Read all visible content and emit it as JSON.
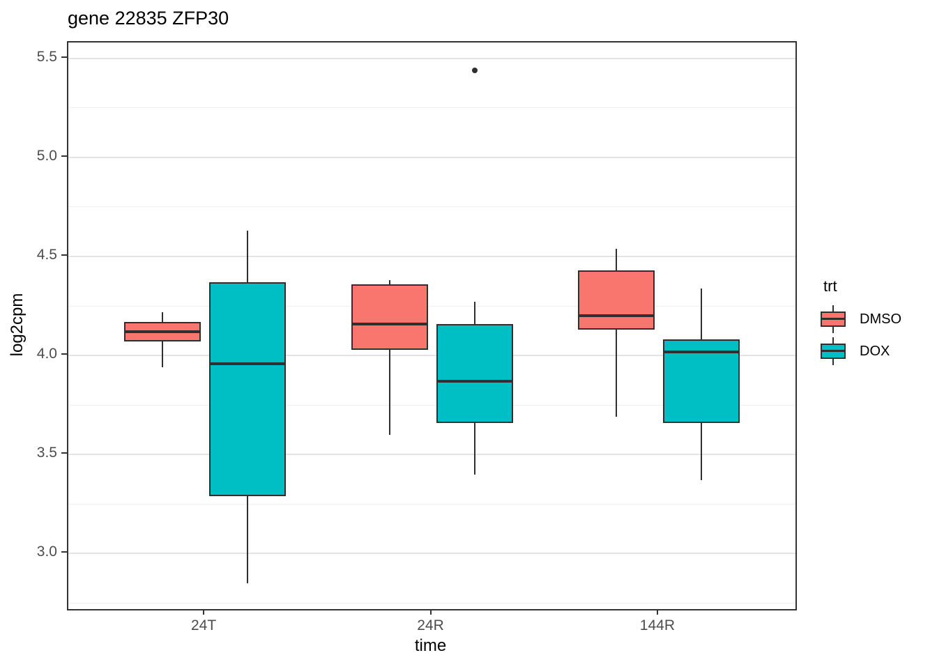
{
  "title": "gene 22835 ZFP30",
  "colors": {
    "dmso_fill": "#F8766D",
    "dox_fill": "#00BFC4",
    "box_stroke": "#2F2F2F",
    "panel_border": "#333333",
    "grid_major": "#E4E4E4",
    "grid_minor": "#EFEFEF",
    "tick_label": "#4D4D4D",
    "outlier": "#2F2F2F"
  },
  "legend": {
    "title": "trt",
    "entries": [
      {
        "label": "DMSO",
        "color": "#F8766D"
      },
      {
        "label": "DOX",
        "color": "#00BFC4"
      }
    ]
  },
  "axes": {
    "x_title": "time",
    "y_title": "log2cpm"
  },
  "chart_data": {
    "type": "boxplot",
    "title": "gene 22835 ZFP30",
    "xlabel": "time",
    "ylabel": "log2cpm",
    "categories": [
      "24T",
      "24R",
      "144R"
    ],
    "y_ticks": [
      3.0,
      3.5,
      4.0,
      4.5,
      5.0,
      5.5
    ],
    "ylim": [
      2.72,
      5.58
    ],
    "grid": true,
    "legend_title": "trt",
    "legend_position": "right",
    "series": [
      {
        "name": "DMSO",
        "color": "#F8766D",
        "boxes": [
          {
            "category": "24T",
            "whisker_low": 3.94,
            "q1": 4.07,
            "median": 4.12,
            "q3": 4.17,
            "whisker_high": 4.22,
            "outliers": []
          },
          {
            "category": "24R",
            "whisker_low": 3.6,
            "q1": 4.03,
            "median": 4.16,
            "q3": 4.36,
            "whisker_high": 4.38,
            "outliers": []
          },
          {
            "category": "144R",
            "whisker_low": 3.69,
            "q1": 4.13,
            "median": 4.2,
            "q3": 4.43,
            "whisker_high": 4.54,
            "outliers": []
          }
        ]
      },
      {
        "name": "DOX",
        "color": "#00BFC4",
        "boxes": [
          {
            "category": "24T",
            "whisker_low": 2.85,
            "q1": 3.29,
            "median": 3.96,
            "q3": 4.37,
            "whisker_high": 4.63,
            "outliers": []
          },
          {
            "category": "24R",
            "whisker_low": 3.4,
            "q1": 3.66,
            "median": 3.87,
            "q3": 4.16,
            "whisker_high": 4.27,
            "outliers": [
              5.44
            ]
          },
          {
            "category": "144R",
            "whisker_low": 3.37,
            "q1": 3.66,
            "median": 4.02,
            "q3": 4.08,
            "whisker_high": 4.34,
            "outliers": []
          }
        ]
      }
    ]
  }
}
